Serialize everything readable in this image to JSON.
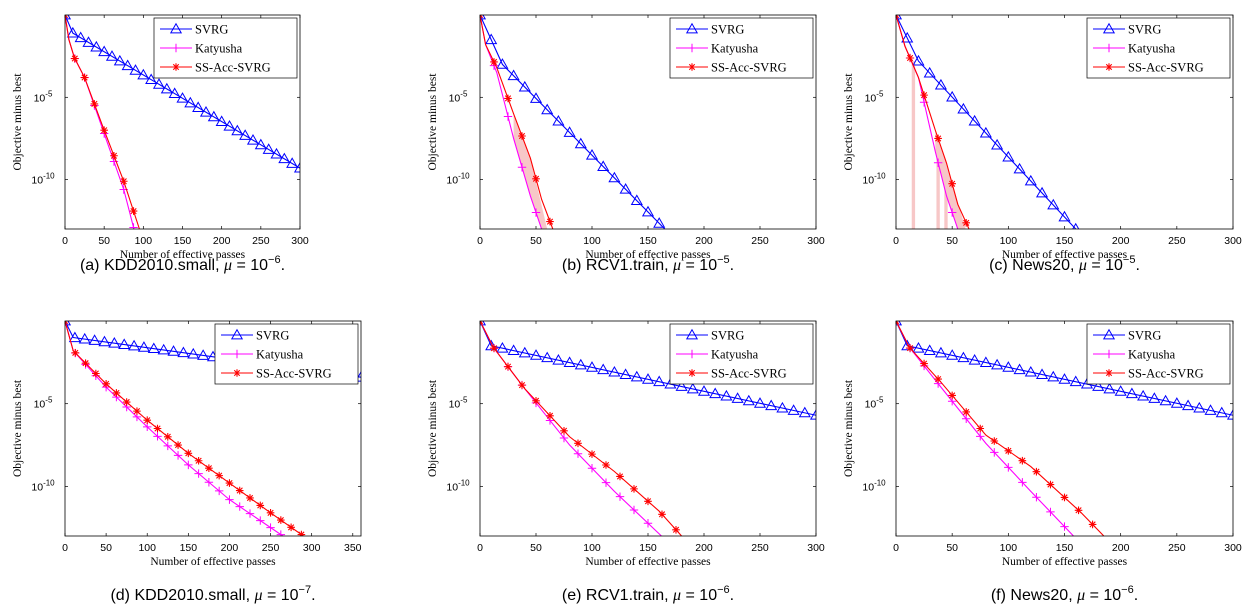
{
  "colors": {
    "svrg": "#0000ff",
    "katyusha": "#ff00ff",
    "ssacc": "#ff0000",
    "band": "#f7c7c7"
  },
  "chart_data": [
    {
      "type": "line",
      "caption": {
        "prefix": "(a) ",
        "dataset": "KDD2010.small",
        "mu": "10",
        "exp": "−6"
      },
      "xlabel": "Number of effective passes",
      "ylabel": "Objective minus best",
      "xlim": [
        0,
        300
      ],
      "ylim_log10": [
        -13,
        0
      ],
      "xticks": [
        0,
        50,
        100,
        150,
        200,
        250,
        300
      ],
      "yticks_log10": [
        -5,
        -10
      ],
      "legend": [
        "SVRG",
        "Katyusha",
        "SS-Acc-SVRG"
      ],
      "legend_position": "top-right",
      "series": [
        {
          "name": "SVRG",
          "color_key": "svrg",
          "marker": "triangle",
          "x": [
            0,
            10,
            300
          ],
          "log10y": [
            0,
            -1.1,
            -9.3
          ]
        },
        {
          "name": "Katyusha",
          "color_key": "katyusha",
          "marker": "plus",
          "x": [
            0,
            5,
            12,
            25,
            50,
            75,
            88
          ],
          "log10y": [
            0,
            -1.5,
            -2.6,
            -3.8,
            -7.2,
            -10.6,
            -13
          ]
        },
        {
          "name": "SS-Acc-SVRG",
          "color_key": "ssacc",
          "marker": "star",
          "x": [
            0,
            5,
            12,
            25,
            50,
            75,
            95
          ],
          "log10y": [
            0,
            -1.5,
            -2.6,
            -3.8,
            -7.0,
            -10.1,
            -13
          ]
        }
      ],
      "bands": []
    },
    {
      "type": "line",
      "caption": {
        "prefix": "(b) ",
        "dataset": "RCV1.train",
        "mu": "10",
        "exp": "−5"
      },
      "xlabel": "Number of effective passes",
      "ylabel": "Objective minus best",
      "xlim": [
        0,
        300
      ],
      "ylim_log10": [
        -13,
        0
      ],
      "xticks": [
        0,
        50,
        100,
        150,
        200,
        250,
        300
      ],
      "yticks_log10": [
        -5,
        -10
      ],
      "legend": [
        "SVRG",
        "Katyusha",
        "SS-Acc-SVRG"
      ],
      "legend_position": "top-right",
      "series": [
        {
          "name": "SVRG",
          "color_key": "svrg",
          "marker": "triangle",
          "x": [
            0,
            20,
            165
          ],
          "log10y": [
            0,
            -3.0,
            -13
          ]
        },
        {
          "name": "Katyusha",
          "color_key": "katyusha",
          "marker": "plus",
          "x": [
            0,
            5,
            15,
            30,
            45,
            55
          ],
          "log10y": [
            0,
            -1.8,
            -3.5,
            -7.5,
            -11.0,
            -13
          ]
        },
        {
          "name": "SS-Acc-SVRG",
          "color_key": "ssacc",
          "marker": "star",
          "x": [
            0,
            5,
            15,
            30,
            45,
            55,
            65
          ],
          "log10y": [
            0,
            -1.8,
            -3.2,
            -6.0,
            -8.7,
            -11.2,
            -13
          ]
        }
      ],
      "bands": [
        {
          "x": [
            30,
            45,
            55,
            60,
            45,
            30
          ],
          "log10y": [
            -7.5,
            -11.0,
            -13,
            -13,
            -8.7,
            -6.0
          ]
        }
      ]
    },
    {
      "type": "line",
      "caption": {
        "prefix": "(c) ",
        "dataset": "News20",
        "mu": "10",
        "exp": "−5"
      },
      "xlabel": "Number of effective passes",
      "ylabel": "Objective minus best",
      "xlim": [
        0,
        300
      ],
      "ylim_log10": [
        -13,
        0
      ],
      "xticks": [
        0,
        50,
        100,
        150,
        200,
        250,
        300
      ],
      "yticks_log10": [
        -5,
        -10
      ],
      "legend": [
        "SVRG",
        "Katyusha",
        "SS-Acc-SVRG"
      ],
      "legend_position": "top-right",
      "series": [
        {
          "name": "SVRG",
          "color_key": "svrg",
          "marker": "triangle",
          "x": [
            0,
            20,
            160
          ],
          "log10y": [
            0,
            -2.8,
            -13
          ]
        },
        {
          "name": "Katyusha",
          "color_key": "katyusha",
          "marker": "plus",
          "x": [
            0,
            8,
            20,
            35,
            45,
            55
          ],
          "log10y": [
            0,
            -1.9,
            -3.8,
            -8.3,
            -11.0,
            -13
          ]
        },
        {
          "name": "SS-Acc-SVRG",
          "color_key": "ssacc",
          "marker": "star",
          "x": [
            0,
            8,
            20,
            35,
            45,
            55,
            65
          ],
          "log10y": [
            0,
            -1.9,
            -3.8,
            -7.0,
            -9.0,
            -11.5,
            -13
          ]
        }
      ],
      "bands": [
        {
          "x": [
            35,
            45,
            55,
            62,
            45,
            35
          ],
          "log10y": [
            -8.3,
            -11.0,
            -13,
            -13,
            -9.0,
            -7.0
          ]
        },
        {
          "x": [
            14,
            17,
            17,
            14
          ],
          "log10y": [
            -2.8,
            -2.8,
            -13,
            -13
          ]
        },
        {
          "x": [
            36,
            39,
            39,
            36
          ],
          "log10y": [
            -8.5,
            -8.5,
            -13,
            -13
          ]
        },
        {
          "x": [
            43,
            46,
            46,
            43
          ],
          "log10y": [
            -9.7,
            -9.7,
            -13,
            -13
          ]
        }
      ]
    },
    {
      "type": "line",
      "caption": {
        "prefix": "(d) ",
        "dataset": "KDD2010.small",
        "mu": "10",
        "exp": "−7"
      },
      "xlabel": "Number of effective passes",
      "ylabel": "Objective minus best",
      "xlim": [
        0,
        360
      ],
      "ylim_log10": [
        -13,
        0
      ],
      "xticks": [
        0,
        50,
        100,
        150,
        200,
        250,
        300,
        350
      ],
      "yticks_log10": [
        -5,
        -10
      ],
      "legend": [
        "SVRG",
        "Katyusha",
        "SS-Acc-SVRG"
      ],
      "legend_position": "top-right",
      "series": [
        {
          "name": "SVRG",
          "color_key": "svrg",
          "marker": "triangle",
          "x": [
            0,
            10,
            360
          ],
          "log10y": [
            0,
            -1.0,
            -3.4
          ]
        },
        {
          "name": "Katyusha",
          "color_key": "katyusha",
          "marker": "plus",
          "x": [
            0,
            10,
            50,
            100,
            150,
            200,
            265
          ],
          "log10y": [
            0,
            -1.8,
            -4.0,
            -6.4,
            -8.7,
            -10.8,
            -13
          ]
        },
        {
          "name": "SS-Acc-SVRG",
          "color_key": "ssacc",
          "marker": "star",
          "x": [
            0,
            10,
            50,
            100,
            150,
            200,
            250,
            290
          ],
          "log10y": [
            0,
            -1.8,
            -3.8,
            -6.0,
            -8.0,
            -9.8,
            -11.6,
            -13
          ]
        }
      ],
      "bands": []
    },
    {
      "type": "line",
      "caption": {
        "prefix": "(e) ",
        "dataset": "RCV1.train",
        "mu": "10",
        "exp": "−6"
      },
      "xlabel": "Number of effective passes",
      "ylabel": "Objective minus best",
      "xlim": [
        0,
        300
      ],
      "ylim_log10": [
        -13,
        0
      ],
      "xticks": [
        0,
        50,
        100,
        150,
        200,
        250,
        300
      ],
      "yticks_log10": [
        -5,
        -10
      ],
      "legend": [
        "SVRG",
        "Katyusha",
        "SS-Acc-SVRG"
      ],
      "legend_position": "top-right",
      "series": [
        {
          "name": "SVRG",
          "color_key": "svrg",
          "marker": "triangle",
          "x": [
            0,
            10,
            300
          ],
          "log10y": [
            0,
            -1.5,
            -5.7
          ]
        },
        {
          "name": "Katyusha",
          "color_key": "katyusha",
          "marker": "plus",
          "x": [
            0,
            12,
            40,
            80,
            120,
            162
          ],
          "log10y": [
            0,
            -1.6,
            -4.1,
            -7.5,
            -10.3,
            -13
          ]
        },
        {
          "name": "SS-Acc-SVRG",
          "color_key": "ssacc",
          "marker": "star",
          "x": [
            0,
            12,
            40,
            80,
            120,
            160,
            180
          ],
          "log10y": [
            0,
            -1.6,
            -4.1,
            -7.0,
            -9.1,
            -11.5,
            -13
          ]
        }
      ],
      "bands": []
    },
    {
      "type": "line",
      "caption": {
        "prefix": "(f) ",
        "dataset": "News20",
        "mu": "10",
        "exp": "−6"
      },
      "xlabel": "Number of effective passes",
      "ylabel": "Objective minus best",
      "xlim": [
        0,
        300
      ],
      "ylim_log10": [
        -13,
        0
      ],
      "xticks": [
        0,
        50,
        100,
        150,
        200,
        250,
        300
      ],
      "yticks_log10": [
        -5,
        -10
      ],
      "legend": [
        "SVRG",
        "Katyusha",
        "SS-Acc-SVRG"
      ],
      "legend_position": "top-right",
      "series": [
        {
          "name": "SVRG",
          "color_key": "svrg",
          "marker": "triangle",
          "x": [
            0,
            10,
            300
          ],
          "log10y": [
            0,
            -1.5,
            -5.7
          ]
        },
        {
          "name": "Katyusha",
          "color_key": "katyusha",
          "marker": "plus",
          "x": [
            0,
            12,
            40,
            80,
            120,
            158
          ],
          "log10y": [
            0,
            -1.6,
            -4.0,
            -7.4,
            -10.3,
            -13
          ]
        },
        {
          "name": "SS-Acc-SVRG",
          "color_key": "ssacc",
          "marker": "star",
          "x": [
            0,
            12,
            40,
            80,
            120,
            165,
            185
          ],
          "log10y": [
            0,
            -1.6,
            -3.7,
            -6.9,
            -8.8,
            -11.6,
            -13
          ]
        }
      ],
      "bands": []
    }
  ]
}
